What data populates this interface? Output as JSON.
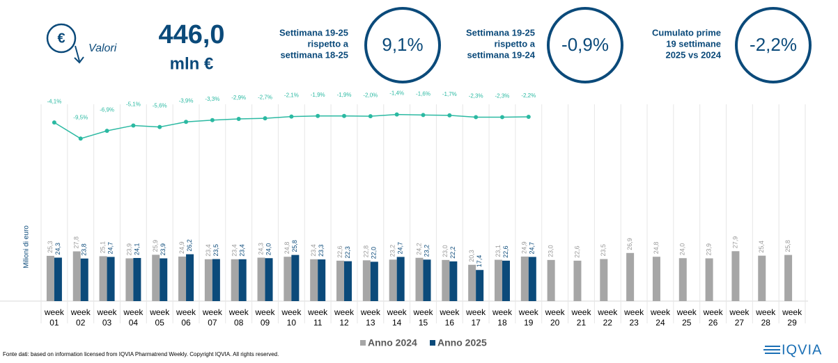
{
  "header": {
    "icon_label": "Valori",
    "total_value": "446,0",
    "total_unit": "mln €",
    "kpis": [
      {
        "label": [
          "Settimana 19-25",
          "rispetto a",
          "settimana 18-25"
        ],
        "value": "9,1%"
      },
      {
        "label": [
          "Settimana 19-25",
          "rispetto a",
          "settimana 19-24"
        ],
        "value": "-0,9%"
      },
      {
        "label": [
          "Cumulato prime",
          "19 settimane",
          "2025 vs 2024"
        ],
        "value": "-2,2%"
      }
    ]
  },
  "chart_data": {
    "type": "bar",
    "ylabel": "Milioni di euro",
    "categories": [
      "week 01",
      "week 02",
      "week 03",
      "week 04",
      "week 05",
      "week 06",
      "week 07",
      "week 08",
      "week 09",
      "week 10",
      "week 11",
      "week 12",
      "week 13",
      "week 14",
      "week 15",
      "week 16",
      "week 17",
      "week 18",
      "week 19",
      "week 20",
      "week 21",
      "week 22",
      "week 23",
      "week 24",
      "week 25",
      "week 26",
      "week 27",
      "week 28",
      "week 29"
    ],
    "ylim": [
      0,
      110
    ],
    "y2lim": [
      -64,
      2
    ],
    "legend": "bottom",
    "series": [
      {
        "name": "Anno 2024",
        "color": "#a6a6a6",
        "values": [
          25.3,
          27.8,
          25.1,
          23.9,
          25.9,
          24.9,
          23.4,
          23.4,
          24.3,
          24.8,
          23.4,
          22.6,
          22.8,
          23.2,
          24.2,
          23.0,
          20.3,
          23.1,
          24.9,
          23.0,
          22.6,
          23.5,
          26.9,
          24.8,
          24.0,
          23.9,
          27.9,
          25.4,
          25.8
        ],
        "value_labels": [
          "25,3",
          "27,8",
          "25,1",
          "23,9",
          "25,9",
          "24,9",
          "23,4",
          "23,4",
          "24,3",
          "24,8",
          "23,4",
          "22,6",
          "22,8",
          "23,2",
          "24,2",
          "23,0",
          "20,3",
          "23,1",
          "24,9",
          "23,0",
          "22,6",
          "23,5",
          "26,9",
          "24,8",
          "24,0",
          "23,9",
          "27,9",
          "25,4",
          "25,8"
        ]
      },
      {
        "name": "Anno 2025",
        "color": "#0b4a7a",
        "values": [
          24.3,
          23.8,
          24.7,
          24.1,
          23.9,
          26.2,
          23.5,
          23.4,
          24.0,
          25.8,
          23.3,
          22.3,
          22.0,
          24.7,
          23.2,
          22.2,
          17.4,
          22.6,
          24.7,
          null,
          null,
          null,
          null,
          null,
          null,
          null,
          null,
          null,
          null
        ],
        "value_labels": [
          "24,3",
          "23,8",
          "24,7",
          "24,1",
          "23,9",
          "26,2",
          "23,5",
          "23,4",
          "24,0",
          "25,8",
          "23,3",
          "22,3",
          "22,0",
          "24,7",
          "23,2",
          "22,2",
          "17,4",
          "22,6",
          "24,7",
          null,
          null,
          null,
          null,
          null,
          null,
          null,
          null,
          null,
          null
        ]
      },
      {
        "type": "line",
        "axis": "y2",
        "color": "#2bb9a2",
        "values": [
          -4.1,
          -9.5,
          -6.9,
          -5.1,
          -5.6,
          -3.9,
          -3.3,
          -2.9,
          -2.7,
          -2.1,
          -1.9,
          -1.9,
          -2.0,
          -1.4,
          -1.6,
          -1.7,
          -2.3,
          -2.3,
          -2.2,
          null,
          null,
          null,
          null,
          null,
          null,
          null,
          null,
          null,
          null
        ],
        "value_labels": [
          "-4,1%",
          "-9,5%",
          "-6,9%",
          "-5,1%",
          "-5,6%",
          "-3,9%",
          "-3,3%",
          "-2,9%",
          "-2,7%",
          "-2,1%",
          "-1,9%",
          "-1,9%",
          "-2,0%",
          "-1,4%",
          "-1,6%",
          "-1,7%",
          "-2,3%",
          "-2,3%",
          "-2,2%",
          null,
          null,
          null,
          null,
          null,
          null,
          null,
          null,
          null,
          null
        ]
      }
    ]
  },
  "footer": {
    "source": "Fonte dati: based on information licensed from IQVIA Pharmatrend Weekly. Copyright IQVIA. All rights reserved.",
    "logo": "IQVIA"
  }
}
